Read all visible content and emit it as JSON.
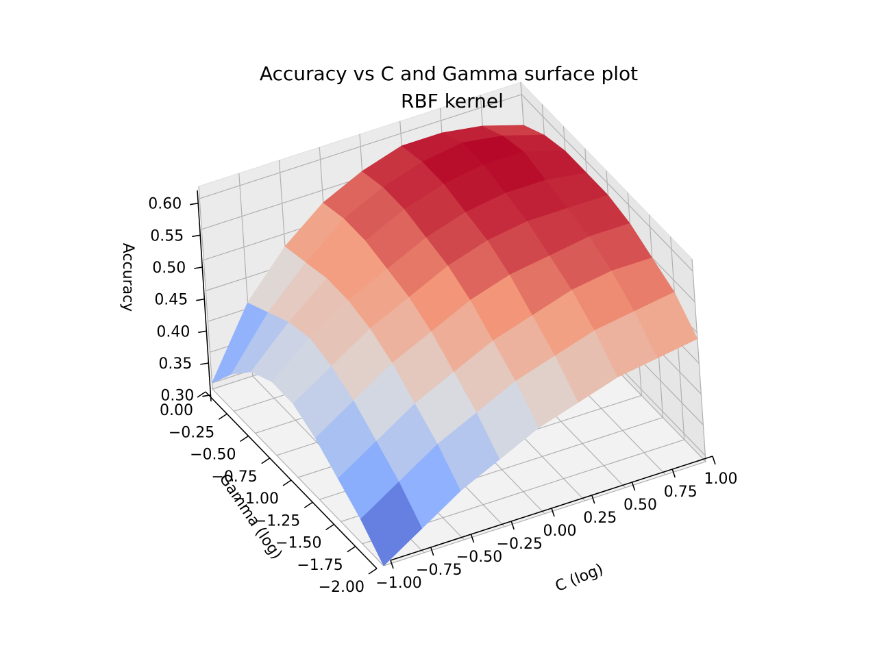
{
  "chart_data": {
    "type": "surface",
    "title": "Accuracy vs C and Gamma surface plot",
    "subtitle": "RBF kernel",
    "xlabel": "C (log)",
    "ylabel": "Gamma (log)",
    "zlabel": "Accuracy",
    "colormap": "coolwarm",
    "x_ticks": [
      "−1.00",
      "−0.75",
      "−0.50",
      "−0.25",
      "0.00",
      "0.25",
      "0.50",
      "0.75",
      "1.00"
    ],
    "y_ticks": [
      "0.00",
      "−0.25",
      "−0.50",
      "−0.75",
      "−1.00",
      "−1.25",
      "−1.50",
      "−1.75",
      "−2.00"
    ],
    "z_ticks": [
      "0.30",
      "0.35",
      "0.40",
      "0.45",
      "0.50",
      "0.55",
      "0.60"
    ],
    "xlim": [
      -1.0,
      1.0
    ],
    "ylim": [
      -2.0,
      0.0
    ],
    "zlim": [
      0.29,
      0.62
    ],
    "grid": true,
    "x": [
      -1.0,
      -0.75,
      -0.5,
      -0.25,
      0.0,
      0.25,
      0.5,
      0.75,
      1.0
    ],
    "y": [
      -2.0,
      -1.75,
      -1.5,
      -1.25,
      -1.0,
      -0.75,
      -0.5,
      -0.25,
      0.0
    ],
    "z": [
      [
        0.29,
        0.33,
        0.37,
        0.4,
        0.43,
        0.45,
        0.47,
        0.48,
        0.49
      ],
      [
        0.33,
        0.37,
        0.41,
        0.44,
        0.47,
        0.49,
        0.51,
        0.52,
        0.53
      ],
      [
        0.36,
        0.4,
        0.44,
        0.47,
        0.5,
        0.52,
        0.54,
        0.55,
        0.55
      ],
      [
        0.39,
        0.43,
        0.47,
        0.5,
        0.53,
        0.55,
        0.56,
        0.57,
        0.57
      ],
      [
        0.41,
        0.45,
        0.49,
        0.52,
        0.55,
        0.57,
        0.58,
        0.58,
        0.58
      ],
      [
        0.41,
        0.46,
        0.5,
        0.53,
        0.56,
        0.58,
        0.59,
        0.59,
        0.58
      ],
      [
        0.39,
        0.45,
        0.5,
        0.54,
        0.57,
        0.59,
        0.6,
        0.6,
        0.58
      ],
      [
        0.35,
        0.43,
        0.49,
        0.54,
        0.57,
        0.59,
        0.6,
        0.59,
        0.57
      ],
      [
        0.3,
        0.41,
        0.48,
        0.53,
        0.56,
        0.58,
        0.58,
        0.57,
        0.55
      ]
    ]
  }
}
